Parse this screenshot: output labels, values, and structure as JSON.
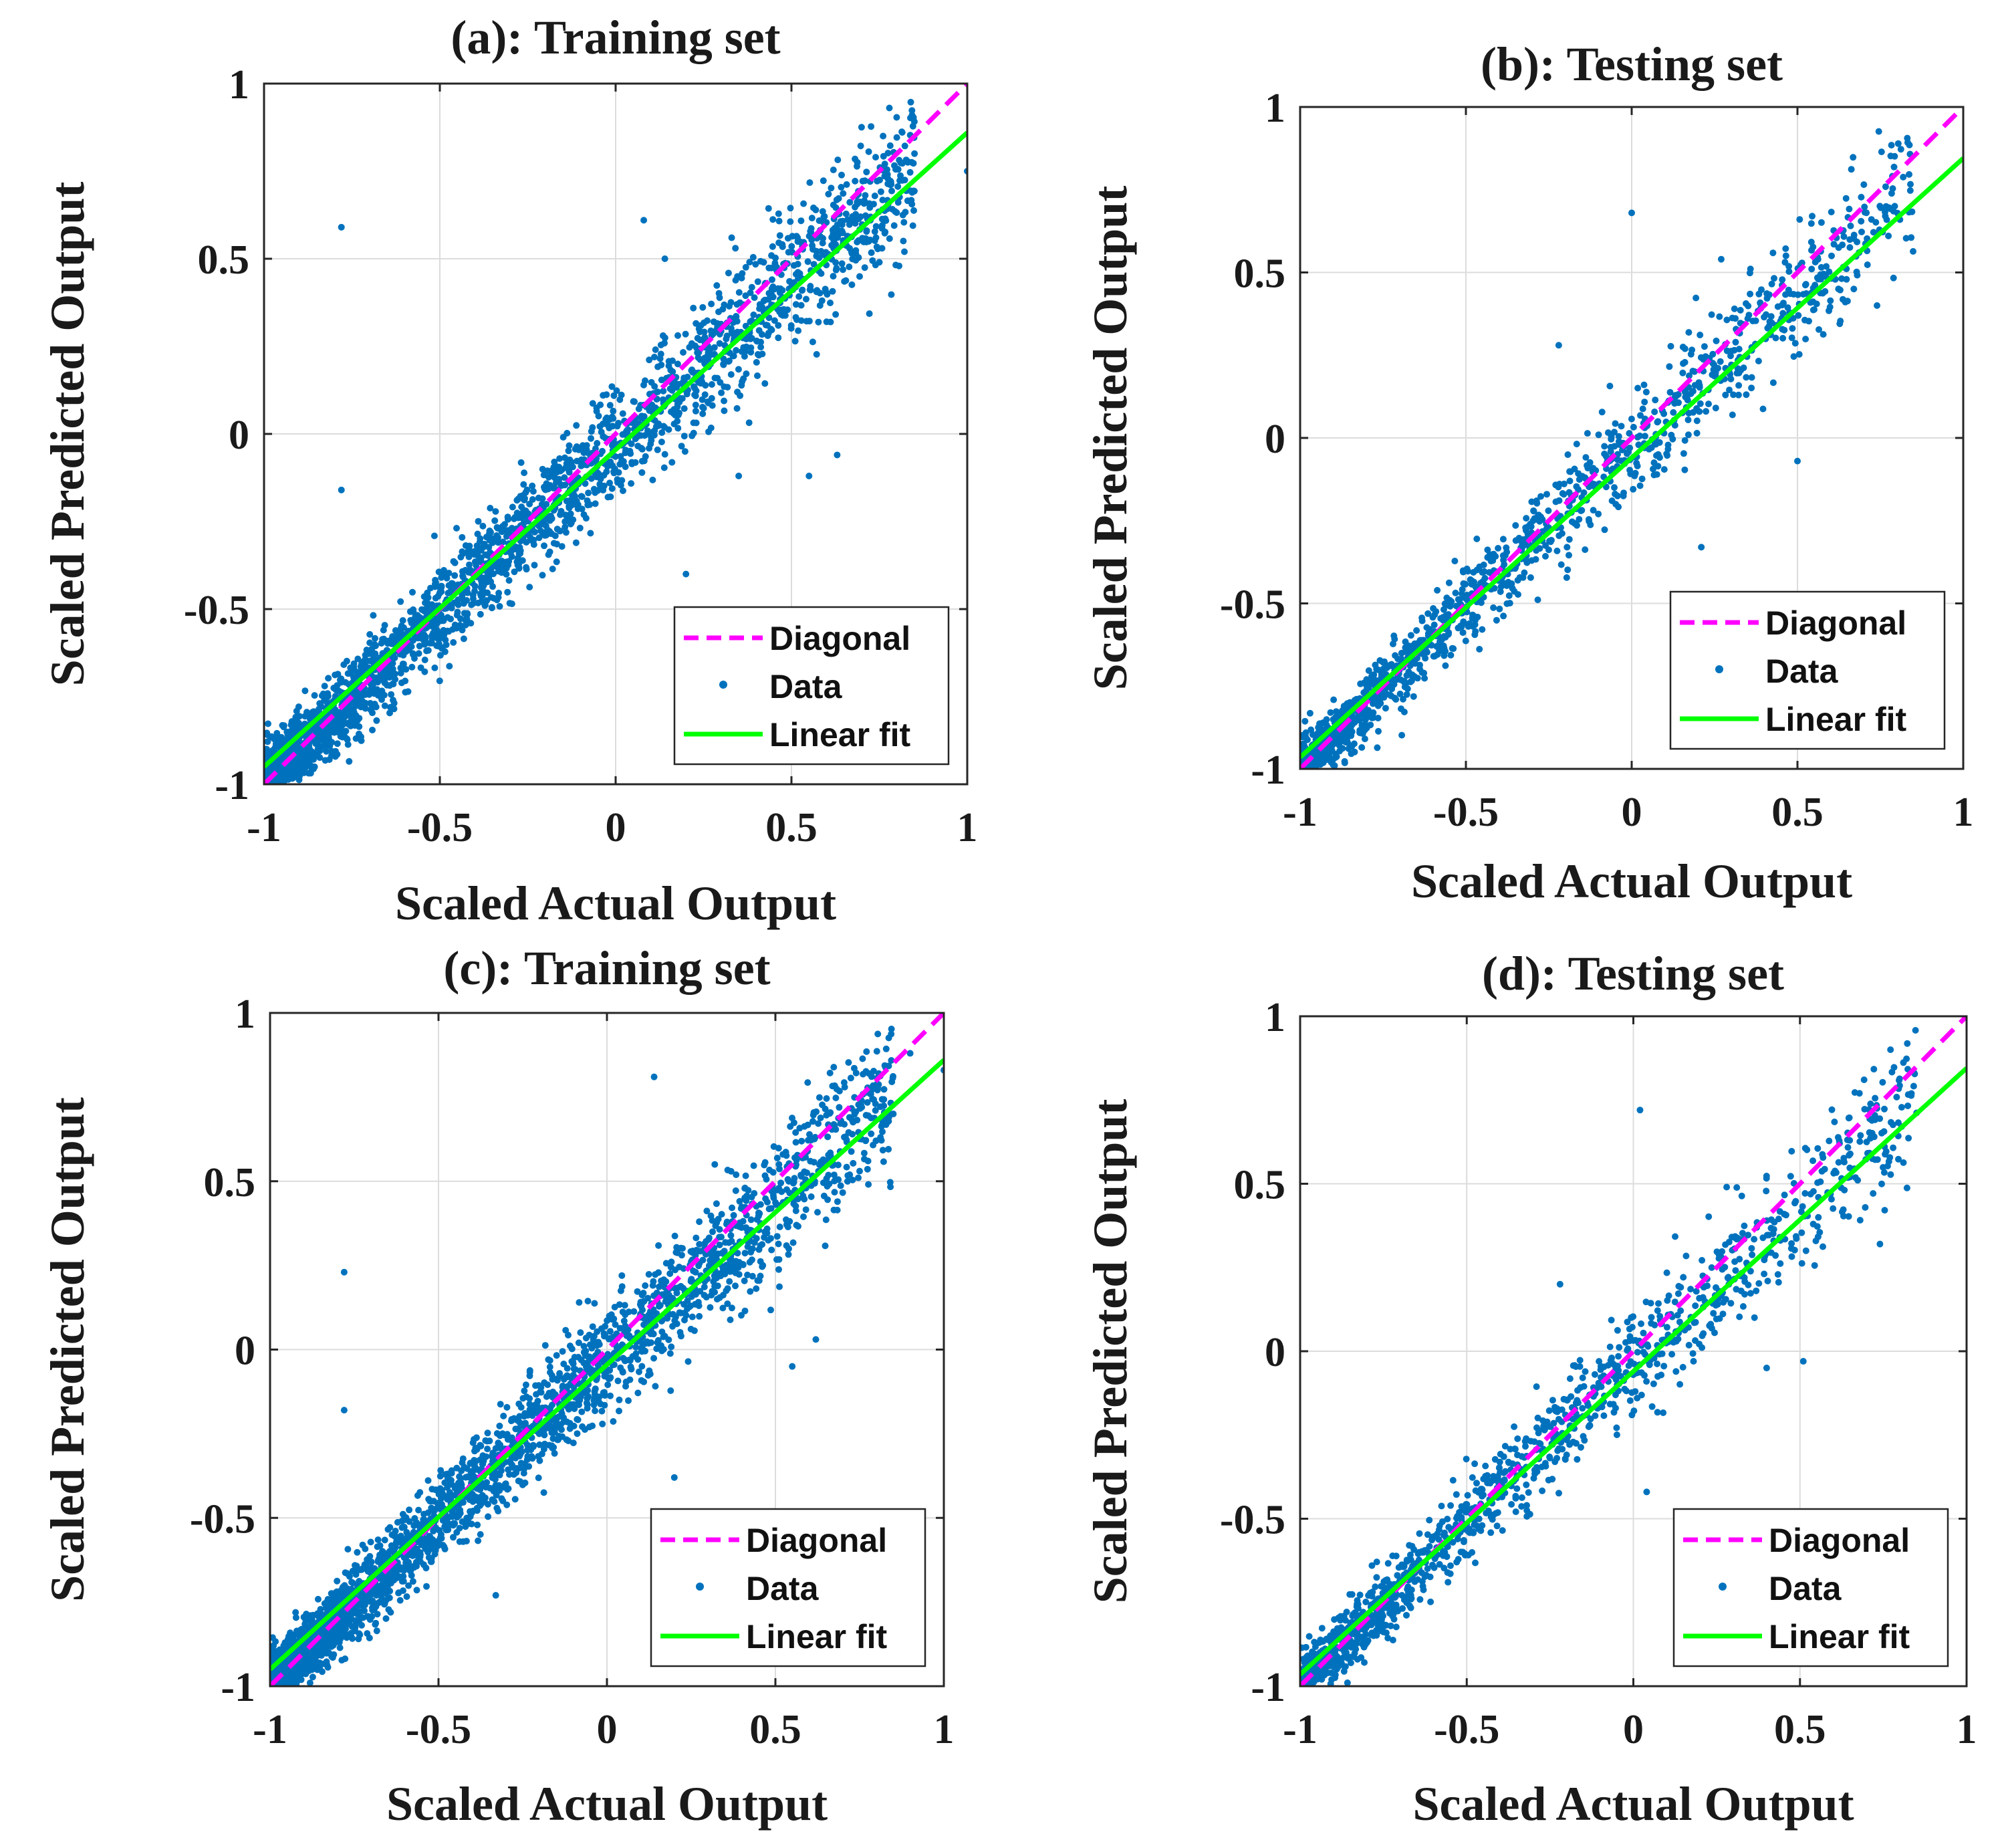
{
  "chart_data": [
    {
      "id": "a",
      "type": "scatter",
      "title": "(a): Training set",
      "xlabel": "Scaled Actual Output",
      "ylabel": "Scaled Predicted Output",
      "xlim": [
        -1,
        1
      ],
      "ylim": [
        -1,
        1
      ],
      "xticks": [
        "-1",
        "-0.5",
        "0",
        "0.5",
        "1"
      ],
      "yticks": [
        "-1",
        "-0.5",
        "0",
        "0.5",
        "1"
      ],
      "grid": true,
      "legend_position": "bottom-right",
      "series": [
        {
          "name": "Diagonal",
          "kind": "line",
          "style": "dashed",
          "color": "#ff00ff",
          "slope": 1.0,
          "intercept": 0.0
        },
        {
          "name": "Data",
          "kind": "scatter",
          "color": "#0072bd",
          "n_points": 2600,
          "seed": 11,
          "noise_lo": 0.05,
          "noise_hi": 0.13,
          "outliers": [
            [
              -0.78,
              0.59
            ],
            [
              -0.78,
              -0.16
            ],
            [
              0.08,
              0.61
            ],
            [
              0.14,
              0.5
            ],
            [
              0.33,
              0.56
            ],
            [
              0.63,
              -0.06
            ],
            [
              0.55,
              -0.12
            ],
            [
              0.35,
              -0.12
            ],
            [
              0.2,
              -0.4
            ],
            [
              0.75,
              0.49
            ],
            [
              0.85,
              0.8
            ],
            [
              1.0,
              0.75
            ],
            [
              0.62,
              0.53
            ]
          ]
        },
        {
          "name": "Linear fit",
          "kind": "line",
          "style": "solid",
          "color": "#00ff00",
          "slope": 0.905,
          "intercept": -0.045
        }
      ]
    },
    {
      "id": "b",
      "type": "scatter",
      "title": "(b): Testing set",
      "xlabel": "Scaled Actual Output",
      "ylabel": "Scaled Predicted Output",
      "xlim": [
        -1,
        1
      ],
      "ylim": [
        -1,
        1
      ],
      "xticks": [
        "-1",
        "-0.5",
        "0",
        "0.5",
        "1"
      ],
      "yticks": [
        "-1",
        "-0.5",
        "0",
        "0.5",
        "1"
      ],
      "grid": true,
      "legend_position": "bottom-right",
      "series": [
        {
          "name": "Diagonal",
          "kind": "line",
          "style": "dashed",
          "color": "#ff00ff",
          "slope": 1.0,
          "intercept": 0.0
        },
        {
          "name": "Data",
          "kind": "scatter",
          "color": "#0072bd",
          "n_points": 1300,
          "seed": 23,
          "noise_lo": 0.05,
          "noise_hi": 0.12,
          "outliers": [
            [
              0.0,
              0.68
            ],
            [
              0.27,
              0.54
            ],
            [
              0.5,
              -0.07
            ],
            [
              0.67,
              0.45
            ],
            [
              0.74,
              0.4
            ],
            [
              0.21,
              -0.33
            ],
            [
              -0.22,
              0.28
            ],
            [
              0.08,
              -0.05
            ]
          ]
        },
        {
          "name": "Linear fit",
          "kind": "line",
          "style": "solid",
          "color": "#00ff00",
          "slope": 0.905,
          "intercept": -0.06
        }
      ]
    },
    {
      "id": "c",
      "type": "scatter",
      "title": "(c): Training set",
      "xlabel": "Scaled Actual Output",
      "ylabel": "Scaled Predicted Output",
      "xlim": [
        -1,
        1
      ],
      "ylim": [
        -1,
        1
      ],
      "xticks": [
        "-1",
        "-0.5",
        "0",
        "0.5",
        "1"
      ],
      "yticks": [
        "-1",
        "-0.5",
        "0",
        "0.5",
        "1"
      ],
      "grid": true,
      "legend_position": "bottom-right",
      "series": [
        {
          "name": "Diagonal",
          "kind": "line",
          "style": "dashed",
          "color": "#ff00ff",
          "slope": 1.0,
          "intercept": 0.0
        },
        {
          "name": "Data",
          "kind": "scatter",
          "color": "#0072bd",
          "n_points": 2600,
          "seed": 37,
          "noise_lo": 0.05,
          "noise_hi": 0.13,
          "outliers": [
            [
              -0.78,
              0.23
            ],
            [
              -0.78,
              -0.18
            ],
            [
              0.14,
              0.81
            ],
            [
              0.32,
              0.55
            ],
            [
              0.62,
              0.03
            ],
            [
              0.55,
              -0.05
            ],
            [
              0.2,
              -0.38
            ],
            [
              -0.33,
              -0.73
            ],
            [
              0.75,
              0.53
            ],
            [
              0.85,
              0.7
            ],
            [
              1.0,
              0.83
            ],
            [
              0.9,
              0.88
            ]
          ]
        },
        {
          "name": "Linear fit",
          "kind": "line",
          "style": "solid",
          "color": "#00ff00",
          "slope": 0.905,
          "intercept": -0.045
        }
      ]
    },
    {
      "id": "d",
      "type": "scatter",
      "title": "(d): Testing set",
      "xlabel": "Scaled Actual Output",
      "ylabel": "Scaled Predicted Output",
      "xlim": [
        -1,
        1
      ],
      "ylim": [
        -1,
        1
      ],
      "xticks": [
        "-1",
        "-0.5",
        "0",
        "0.5",
        "1"
      ],
      "yticks": [
        "-1",
        "-0.5",
        "0",
        "0.5",
        "1"
      ],
      "grid": true,
      "legend_position": "bottom-right",
      "series": [
        {
          "name": "Diagonal",
          "kind": "line",
          "style": "dashed",
          "color": "#ff00ff",
          "slope": 1.0,
          "intercept": 0.0
        },
        {
          "name": "Data",
          "kind": "scatter",
          "color": "#0072bd",
          "n_points": 1300,
          "seed": 53,
          "noise_lo": 0.05,
          "noise_hi": 0.12,
          "outliers": [
            [
              0.02,
              0.72
            ],
            [
              0.28,
              0.49
            ],
            [
              0.65,
              0.52
            ],
            [
              0.74,
              0.32
            ],
            [
              0.51,
              -0.03
            ],
            [
              0.4,
              -0.05
            ],
            [
              0.04,
              -0.42
            ],
            [
              -0.22,
              0.2
            ]
          ]
        },
        {
          "name": "Linear fit",
          "kind": "line",
          "style": "solid",
          "color": "#00ff00",
          "slope": 0.905,
          "intercept": -0.06
        }
      ]
    }
  ]
}
